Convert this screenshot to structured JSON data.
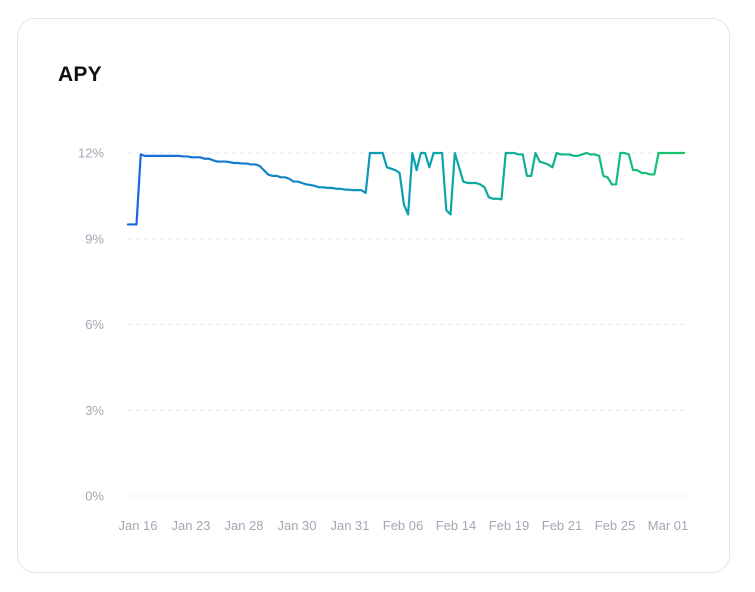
{
  "card": {
    "title": "APY"
  },
  "chart_data": {
    "type": "line",
    "title": "APY",
    "xlabel": "",
    "ylabel": "",
    "ylim": [
      0,
      12
    ],
    "y_ticks": [
      "0%",
      "3%",
      "6%",
      "9%",
      "12%"
    ],
    "y_tick_values": [
      0,
      3,
      6,
      9,
      12
    ],
    "x_tick_labels": [
      "Jan 16",
      "Jan 23",
      "Jan 28",
      "Jan 30",
      "Jan 31",
      "Feb 06",
      "Feb 14",
      "Feb 19",
      "Feb 21",
      "Feb 25",
      "Mar 01"
    ],
    "grid": true,
    "grid_style": "dashed-horizontal",
    "line_gradient": [
      "#1a66e0",
      "#0b9fb0",
      "#18c46a"
    ],
    "series": [
      {
        "values": [
          9.5,
          9.5,
          9.5,
          11.95,
          11.9,
          11.9,
          11.9,
          11.9,
          11.9,
          11.9,
          11.9,
          11.9,
          11.9,
          11.88,
          11.88,
          11.85,
          11.85,
          11.85,
          11.8,
          11.8,
          11.75,
          11.7,
          11.7,
          11.7,
          11.68,
          11.65,
          11.65,
          11.63,
          11.63,
          11.6,
          11.6,
          11.55,
          11.4,
          11.25,
          11.2,
          11.2,
          11.15,
          11.15,
          11.1,
          11.0,
          11.0,
          10.95,
          10.9,
          10.88,
          10.85,
          10.8,
          10.8,
          10.78,
          10.78,
          10.75,
          10.75,
          10.72,
          10.72,
          10.7,
          10.7,
          10.7,
          10.6,
          12.0,
          12.0,
          12.0,
          12.0,
          11.5,
          11.45,
          11.4,
          11.3,
          10.2,
          9.85,
          12.0,
          11.4,
          12.0,
          12.0,
          11.5,
          12.0,
          12.0,
          12.0,
          10.0,
          9.85,
          12.0,
          11.5,
          11.0,
          10.95,
          10.95,
          10.95,
          10.9,
          10.8,
          10.45,
          10.4,
          10.4,
          10.38,
          12.0,
          12.0,
          12.0,
          11.95,
          11.95,
          11.2,
          11.2,
          12.0,
          11.7,
          11.65,
          11.6,
          11.5,
          12.0,
          11.95,
          11.95,
          11.95,
          11.9,
          11.9,
          11.95,
          12.0,
          11.95,
          11.95,
          11.9,
          11.2,
          11.15,
          10.9,
          10.9,
          12.0,
          12.0,
          11.95,
          11.4,
          11.4,
          11.3,
          11.3,
          11.25,
          11.25,
          12.0,
          12.0,
          12.0,
          12.0,
          12.0,
          12.0,
          12.0
        ]
      }
    ]
  }
}
